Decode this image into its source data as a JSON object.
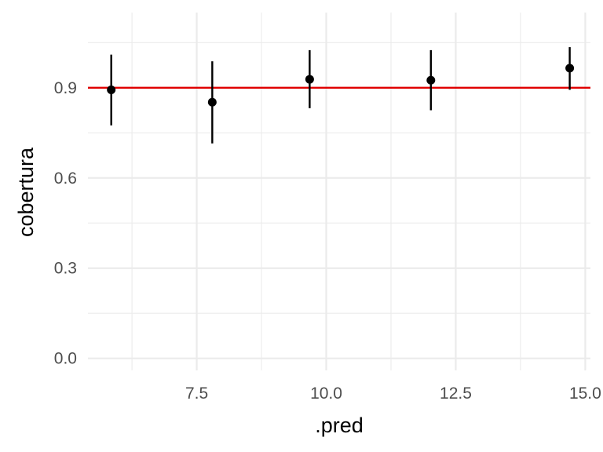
{
  "chart_data": {
    "type": "scatter",
    "title": "",
    "xlabel": ".pred",
    "ylabel": "cobertura",
    "xlim": [
      5.4,
      15.1
    ],
    "ylim": [
      -0.04,
      1.15
    ],
    "x_ticks": [
      7.5,
      10.0,
      12.5,
      15.0
    ],
    "x_tick_labels": [
      "7.5",
      "10.0",
      "12.5",
      "15.0"
    ],
    "y_ticks": [
      0.0,
      0.3,
      0.6,
      0.9
    ],
    "y_tick_labels": [
      "0.0",
      "0.3",
      "0.6",
      "0.9"
    ],
    "grid": true,
    "legend": "none",
    "reference_line": {
      "y": 0.9,
      "color": "#e00000"
    },
    "points": [
      {
        "x": 5.85,
        "y": 0.893,
        "ymin": 0.775,
        "ymax": 1.01
      },
      {
        "x": 7.8,
        "y": 0.852,
        "ymin": 0.715,
        "ymax": 0.988
      },
      {
        "x": 9.68,
        "y": 0.928,
        "ymin": 0.832,
        "ymax": 1.025
      },
      {
        "x": 12.02,
        "y": 0.925,
        "ymin": 0.825,
        "ymax": 1.025
      },
      {
        "x": 14.7,
        "y": 0.965,
        "ymin": 0.893,
        "ymax": 1.035
      }
    ],
    "point_color": "#000000"
  }
}
